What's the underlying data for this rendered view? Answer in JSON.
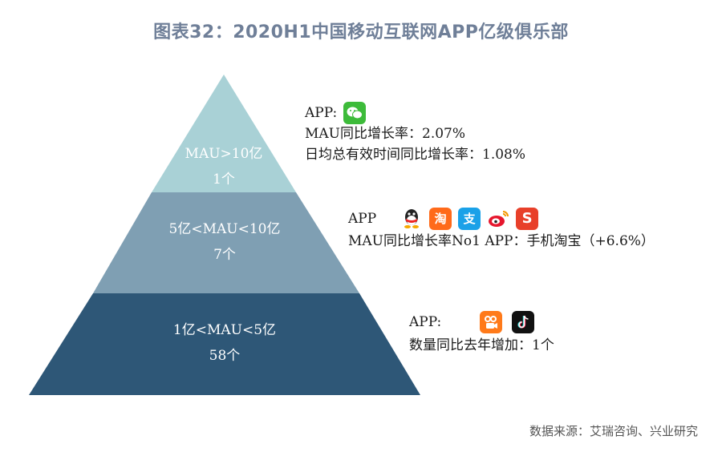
{
  "title": "图表32：2020H1中国移动互联网APP亿级俱乐部",
  "tiers": [
    {
      "range": "MAU>10亿",
      "count": "1个",
      "color": "#a9d1d6"
    },
    {
      "range": "5亿<MAU<10亿",
      "count": "7个",
      "color": "#7f9fb3"
    },
    {
      "range": "1亿<MAU<5亿",
      "count": "58个",
      "color": "#2e5777"
    }
  ],
  "info": {
    "top": {
      "app_label": "APP:",
      "line1": "MAU同比增长率：2.07%",
      "line2": "日均总有效时间同比增长率：1.08%",
      "icons": [
        {
          "name": "wechat-icon",
          "color": "#3dbb3a"
        }
      ]
    },
    "middle": {
      "app_label": "APP",
      "line1": "MAU同比增长率No1 APP：手机淘宝（+6.6%）",
      "icons": [
        {
          "name": "qq-icon",
          "color": "#222222"
        },
        {
          "name": "taobao-icon",
          "color": "#ff6a1a",
          "glyph": "淘"
        },
        {
          "name": "alipay-icon",
          "color": "#1aa1e8",
          "glyph": "支"
        },
        {
          "name": "weibo-icon",
          "color": "#e6162d"
        },
        {
          "name": "wps-icon",
          "color": "#e8402a",
          "glyph": "S"
        }
      ]
    },
    "bottom": {
      "app_label": "APP:",
      "line1": "数量同比去年增加：1个",
      "icons": [
        {
          "name": "kuaishou-icon",
          "color": "#ff7a1a"
        },
        {
          "name": "tiktok-icon",
          "color": "#111111"
        }
      ]
    }
  },
  "source": "数据来源：艾瑞咨询、兴业研究"
}
